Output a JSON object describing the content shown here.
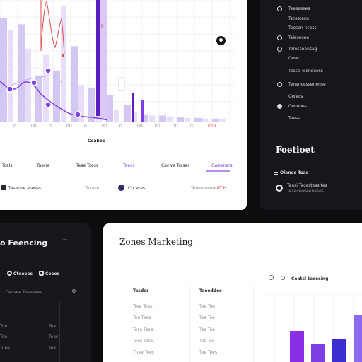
{
  "colors": {
    "accent": "#7b3fe4",
    "accent_light": "#cdbdf0",
    "accent_dark": "#5a1fc2",
    "highlight_red": "#e04b4b",
    "blue": "#3b2fd0"
  },
  "top_left": {
    "x_ticks": [
      "0",
      "0",
      "00",
      "0",
      "00",
      "0",
      "00",
      "0",
      "00",
      "00",
      "00",
      "0",
      "000"
    ],
    "x_axis_label": "Ceahes",
    "tabs": [
      "Tcals",
      "Taerre",
      "Tese Tcess",
      "Taecs",
      "Cacwe Terses",
      "Cweeners"
    ],
    "footer": {
      "item1": "Tesenne ereess",
      "item2": "Tucese",
      "item3": "Cnceres",
      "item4": "Tenenroseere",
      "item4_badge": "TCH"
    },
    "chart_data": {
      "type": "bar",
      "categories": [
        "0",
        "0",
        "00",
        "0",
        "00",
        "0",
        "00",
        "0",
        "00",
        "00",
        "00",
        "0",
        "000"
      ],
      "series": [
        {
          "values": [
            0.85,
            0.8,
            0.38,
            0.42,
            0.62,
            0.28,
            0.22,
            0.14,
            0.06,
            0.05,
            0.04,
            0.03,
            0.02
          ]
        },
        {
          "values": [
            0.75,
            0.6,
            0.55,
            0.95,
            0.3,
            0.18,
            0.1,
            0.08,
            0.05,
            0.04,
            0.03,
            0.02,
            0.02
          ]
        }
      ]
    }
  },
  "top_right": {
    "items": [
      {
        "icon": "ring-icon",
        "label": "Teesesees"
      },
      {
        "icon": "",
        "label": "Tscestens"
      },
      {
        "icon": "",
        "label": "Teesen ncess"
      },
      {
        "icon": "gear-icon",
        "label": "Teiesesee"
      },
      {
        "icon": "ring-icon",
        "label": "Terescoeesag"
      },
      {
        "icon": "",
        "label": "Cese"
      },
      {
        "icon": "",
        "label": "Tesse Tecnoeoss"
      },
      {
        "icon": "ring-icon",
        "label": "Tenencessenense"
      },
      {
        "icon": "",
        "label": "Cerecs"
      },
      {
        "icon": "chat-icon",
        "label": "Ceneoes"
      },
      {
        "icon": "",
        "label": "Teess"
      }
    ],
    "title": "Foetioet",
    "section": "Olenes Toas",
    "user_line1": "Tensi Tecestess tes",
    "user_line2": "Tececeoseeneses"
  },
  "bottom_left": {
    "title": "o Feencing",
    "badges": [
      "Cteeees",
      "Coees"
    ],
    "subtitle": "Ceosee Teeeeses",
    "rows": [
      [
        "Tue",
        "Tee"
      ],
      [
        "Tee",
        "Tees"
      ],
      [
        "Tuee",
        "Tee"
      ]
    ]
  },
  "bottom_right": {
    "title": "Zones Marketing",
    "col1_header": "Tesder",
    "col1_rows": [
      "Tree Tees",
      "Tee Tees",
      "Tese Tees",
      "Tees Tees",
      "Tnee Tees"
    ],
    "col2_header": "Taeeddes",
    "col2_rows": [
      "Tee Tee",
      "Tee Tee",
      "Tee Tee",
      "Tes Tee",
      "Tee Tees"
    ],
    "chart_title": "Ceatcl teeesing",
    "bar_colors": [
      "#8a2ee8",
      "#7b3fe4",
      "#3b2fd0",
      "#8b6af0"
    ]
  }
}
